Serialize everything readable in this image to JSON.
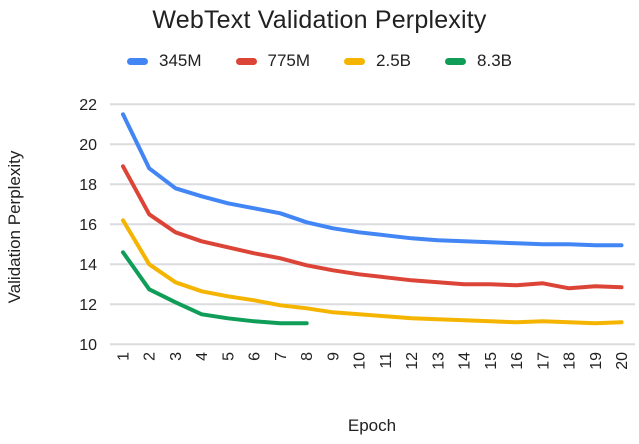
{
  "title": "WebText Validation Perplexity",
  "colors": {
    "grid": "#dadce0",
    "text": "#212121",
    "background": "#ffffff"
  },
  "chart_data": {
    "type": "line",
    "title": "WebText Validation Perplexity",
    "xlabel": "Epoch",
    "ylabel": "Validation Perplexity",
    "x": [
      1,
      2,
      3,
      4,
      5,
      6,
      7,
      8,
      9,
      10,
      11,
      12,
      13,
      14,
      15,
      16,
      17,
      18,
      19,
      20
    ],
    "ylim": [
      10,
      22
    ],
    "yticks": [
      10,
      12,
      14,
      16,
      18,
      20,
      22
    ],
    "grid": "horizontal",
    "legend_position": "top",
    "series": [
      {
        "name": "345M",
        "color": "#4285F4",
        "values": [
          21.5,
          18.8,
          17.8,
          17.4,
          17.05,
          16.8,
          16.55,
          16.1,
          15.8,
          15.6,
          15.45,
          15.3,
          15.2,
          15.15,
          15.1,
          15.05,
          15.0,
          15.0,
          14.95,
          14.95
        ]
      },
      {
        "name": "775M",
        "color": "#DB4437",
        "values": [
          18.9,
          16.5,
          15.6,
          15.15,
          14.85,
          14.55,
          14.3,
          13.95,
          13.7,
          13.5,
          13.35,
          13.2,
          13.1,
          13.0,
          13.0,
          12.95,
          13.05,
          12.8,
          12.9,
          12.85
        ]
      },
      {
        "name": "2.5B",
        "color": "#F4B400",
        "values": [
          16.2,
          14.0,
          13.1,
          12.65,
          12.4,
          12.2,
          11.95,
          11.8,
          11.6,
          11.5,
          11.4,
          11.3,
          11.25,
          11.2,
          11.15,
          11.1,
          11.15,
          11.1,
          11.05,
          11.1
        ]
      },
      {
        "name": "8.3B",
        "color": "#0F9D58",
        "values": [
          14.6,
          12.75,
          12.1,
          11.5,
          11.3,
          11.15,
          11.05,
          11.05
        ]
      }
    ]
  }
}
